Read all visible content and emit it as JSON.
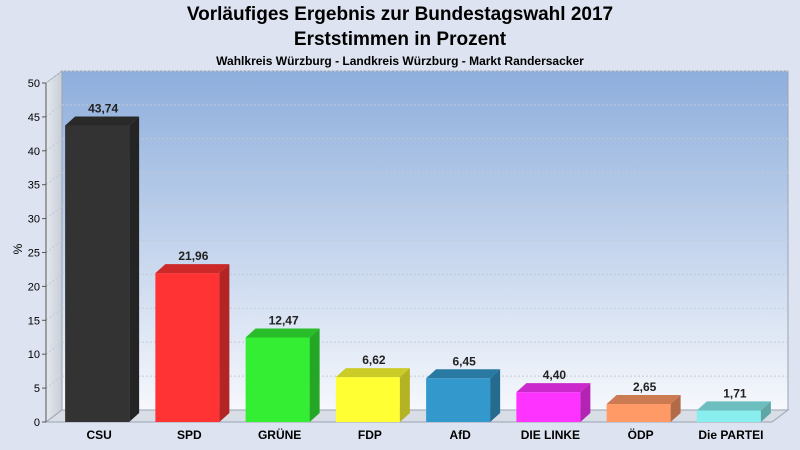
{
  "chart_data": {
    "type": "bar",
    "title": "Vorläufiges Ergebnis zur Bundestagswahl 2017",
    "subtitle": "Erststimmen in Prozent",
    "subsubtitle": "Wahlkreis Würzburg - Landkreis Würzburg - Markt Randersacker",
    "ylabel": "%",
    "xlabel": "",
    "ylim": [
      0,
      50
    ],
    "yticks": [
      "0",
      "5",
      "10",
      "15",
      "20",
      "25",
      "30",
      "35",
      "40",
      "45",
      "50"
    ],
    "categories": [
      "CSU",
      "SPD",
      "GRÜNE",
      "FDP",
      "AfD",
      "DIE LINKE",
      "ÖDP",
      "Die PARTEI"
    ],
    "values": [
      43.74,
      21.96,
      12.47,
      6.62,
      6.45,
      4.4,
      2.65,
      1.71
    ],
    "value_labels": [
      "43,74",
      "21,96",
      "12,47",
      "6,62",
      "6,45",
      "4,40",
      "2,65",
      "1,71"
    ],
    "colors": [
      "#333333",
      "#ff3333",
      "#33ee33",
      "#ffff33",
      "#3399cc",
      "#ff33ff",
      "#ff9966",
      "#88eeee"
    ],
    "grid": true,
    "style": "3d-bars"
  }
}
